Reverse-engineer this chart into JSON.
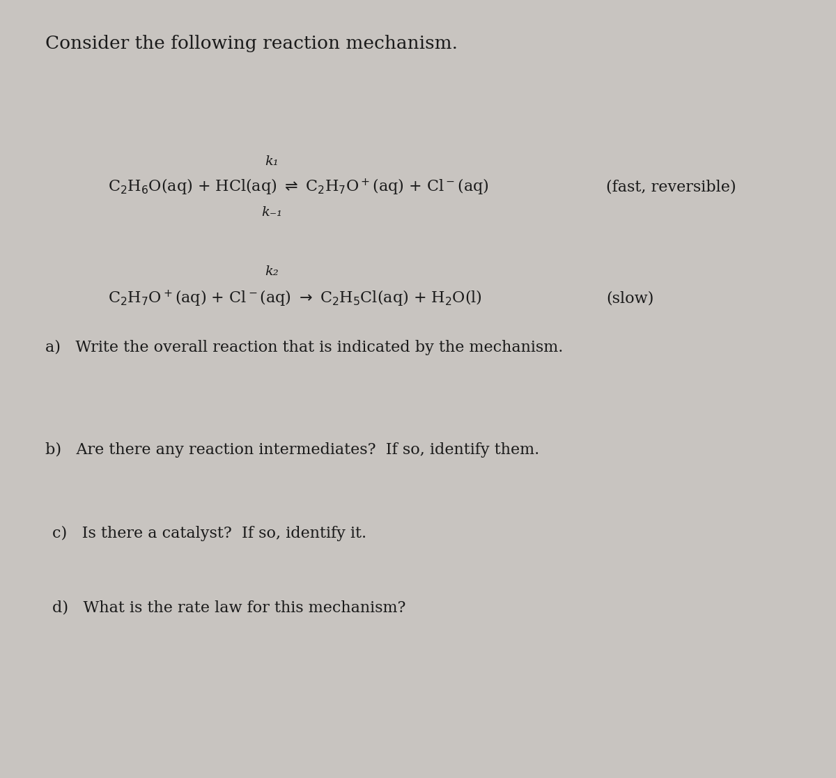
{
  "background_color": "#c8c4c0",
  "title_text": "Consider the following reaction mechanism.",
  "title_fontsize": 19,
  "step1_k1_text": "k₁",
  "step1_km1_text": "k₋₁",
  "step2_k2_text": "k₂",
  "step1_label_text": "(fast, reversible)",
  "step2_label_text": "(slow)",
  "qa_text": "a)   Write the overall reaction that is indicated by the mechanism.",
  "qb_text": "b)   Are there any reaction intermediates?  If so, identify them.",
  "qc_text": "c)   Is there a catalyst?  If so, identify it.",
  "qd_text": "d)   What is the rate law for this mechanism?",
  "fontsize_reactions": 16,
  "fontsize_questions": 16,
  "fontsize_k": 14,
  "text_color": "#1a1a1a"
}
